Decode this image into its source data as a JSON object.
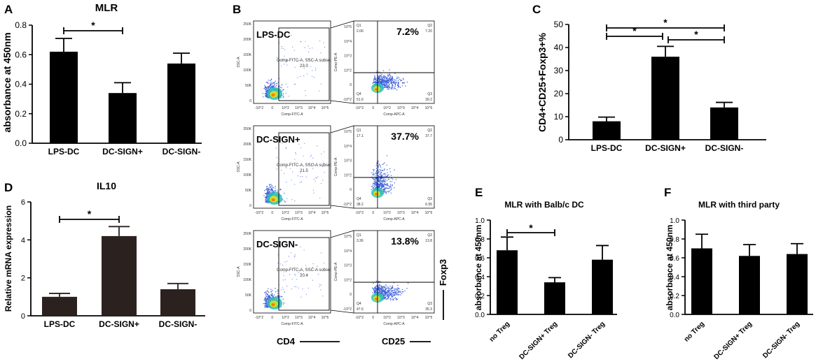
{
  "chart_data": [
    {
      "id": "A",
      "type": "bar",
      "panel_label": "A",
      "title": "MLR",
      "ylabel": "absorbance at 450nm",
      "categories": [
        "LPS-DC",
        "DC-SIGN+",
        "DC-SIGN-"
      ],
      "values": [
        0.62,
        0.34,
        0.54
      ],
      "errors": [
        0.09,
        0.07,
        0.07
      ],
      "ylim": [
        0,
        0.8
      ],
      "yticks": [
        "0.0",
        "0.2",
        "0.4",
        "0.6",
        "0.8"
      ],
      "significance": [
        {
          "from": 0,
          "to": 1,
          "label": "*"
        }
      ],
      "bar_color": "#000000"
    },
    {
      "id": "C",
      "type": "bar",
      "panel_label": "C",
      "title": "",
      "ylabel": "CD4+CD25+Foxp3+%",
      "categories": [
        "LPS-DC",
        "DC-SIGN+",
        "DC-SIGN-"
      ],
      "values": [
        8,
        36,
        14
      ],
      "errors": [
        1.8,
        4.5,
        2.2
      ],
      "ylim": [
        0,
        50
      ],
      "yticks": [
        "0",
        "10",
        "20",
        "30",
        "40",
        "50"
      ],
      "significance": [
        {
          "from": 0,
          "to": 2,
          "label": "*"
        },
        {
          "from": 0,
          "to": 1,
          "label": "*"
        },
        {
          "from": 1,
          "to": 2,
          "label": "*"
        }
      ],
      "bar_color": "#000000"
    },
    {
      "id": "D",
      "type": "bar",
      "panel_label": "D",
      "title": "IL10",
      "ylabel": "Relative mRNA expression",
      "categories": [
        "LPS-DC",
        "DC-SIGN+",
        "DC-SIGN-"
      ],
      "values": [
        1.0,
        4.2,
        1.4
      ],
      "errors": [
        0.18,
        0.5,
        0.3
      ],
      "ylim": [
        0,
        6
      ],
      "yticks": [
        "0",
        "2",
        "4",
        "6"
      ],
      "significance": [
        {
          "from": 0,
          "to": 1,
          "label": "*"
        }
      ],
      "bar_color": "#2b2220"
    },
    {
      "id": "E",
      "type": "bar",
      "panel_label": "E",
      "title": "MLR with Balb/c DC",
      "ylabel": "absorbance at 450nm",
      "categories": [
        "no Treg",
        "DC-SIGN+ Treg",
        "DC-SIGN- Treg"
      ],
      "values": [
        0.68,
        0.34,
        0.58
      ],
      "errors": [
        0.14,
        0.05,
        0.15
      ],
      "ylim": [
        0,
        1.0
      ],
      "yticks": [
        "0.0",
        "0.2",
        "0.4",
        "0.6",
        "0.8",
        "1.0"
      ],
      "significance": [
        {
          "from": 0,
          "to": 1,
          "label": "*"
        }
      ],
      "bar_color": "#000000"
    },
    {
      "id": "F",
      "type": "bar",
      "panel_label": "F",
      "title": "MLR with third party",
      "ylabel": "absorbance at 450nm",
      "categories": [
        "no Treg",
        "DC-SIGN+ Treg",
        "DC-SIGN- Treg"
      ],
      "values": [
        0.7,
        0.62,
        0.64
      ],
      "errors": [
        0.15,
        0.12,
        0.11
      ],
      "ylim": [
        0,
        1.0
      ],
      "yticks": [
        "0.0",
        "0.2",
        "0.4",
        "0.6",
        "0.8",
        "1.0"
      ],
      "significance": [],
      "bar_color": "#000000"
    }
  ],
  "flow": {
    "panel_label": "B",
    "gate_label": "Comp-FITC-A, SSC-A subset",
    "x_axis_left": "Comp-FITC-A",
    "y_axis_left": "SSC-A",
    "x_axis_right": "Comp-APC-A",
    "y_axis_right": "Comp-PE-A",
    "left_yticks": [
      "250K",
      "200K",
      "150K",
      "100K",
      "50K",
      "0"
    ],
    "right_yticks": [
      "10^5",
      "10^4",
      "10^3",
      "10^2",
      "0",
      "-10^2"
    ],
    "xticks": [
      "-10^2",
      "0",
      "10^2",
      "10^3",
      "10^4",
      "10^5"
    ],
    "quad_names": [
      "Q1",
      "Q2",
      "Q3",
      "Q4"
    ],
    "marker_cd4": "CD4",
    "marker_cd25": "CD25",
    "marker_foxp3": "Foxp3",
    "rows": [
      {
        "name": "LPS-DC",
        "gate_pct": "23.0",
        "pct": "7.2%",
        "q1": "2.06",
        "q2": "7.20",
        "q3": "39.2",
        "q4": "51.6"
      },
      {
        "name": "DC-SIGN+",
        "gate_pct": "21.5",
        "pct": "37.7%",
        "q1": "17.1",
        "q2": "37.7",
        "q3": "6.95",
        "q4": "38.2"
      },
      {
        "name": "DC-SIGN-",
        "gate_pct": "20.4",
        "pct": "13.8%",
        "q1": "3.36",
        "q2": "13.8",
        "q3": "35.3",
        "q4": "47.6"
      }
    ]
  }
}
